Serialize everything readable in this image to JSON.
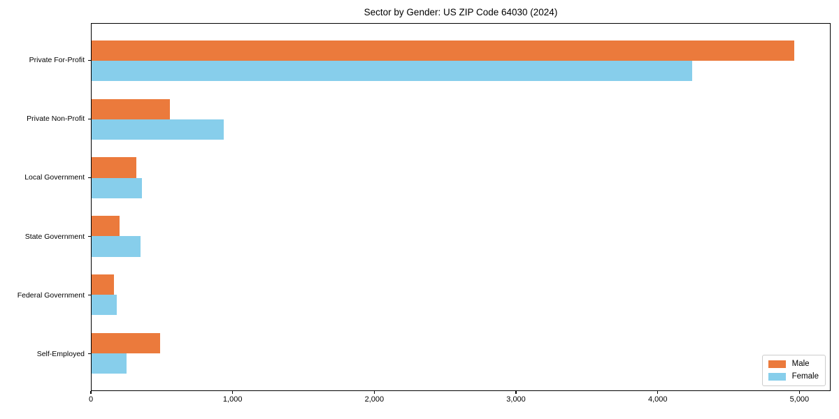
{
  "title": "Sector by Gender: US ZIP Code 64030 (2024)",
  "chart_data": {
    "type": "bar",
    "orientation": "horizontal",
    "title": "Sector by Gender: US ZIP Code 64030 (2024)",
    "categories": [
      "Private For-Profit",
      "Private Non-Profit",
      "Local Government",
      "State Government",
      "Federal Government",
      "Self-Employed"
    ],
    "series": [
      {
        "name": "Male",
        "color": "#EB7A3C",
        "values": [
          4970,
          555,
          315,
          200,
          160,
          485
        ]
      },
      {
        "name": "Female",
        "color": "#87CEEB",
        "values": [
          4245,
          935,
          355,
          345,
          180,
          245
        ]
      }
    ],
    "xlabel": "",
    "ylabel": "",
    "xlim": [
      0,
      5220
    ],
    "xticks": [
      0,
      1000,
      2000,
      3000,
      4000,
      5000
    ],
    "xtick_labels": [
      "0",
      "1,000",
      "2,000",
      "3,000",
      "4,000",
      "5,000"
    ],
    "grid": false,
    "legend_position": "lower right",
    "legend_labels": [
      "Male",
      "Female"
    ]
  }
}
